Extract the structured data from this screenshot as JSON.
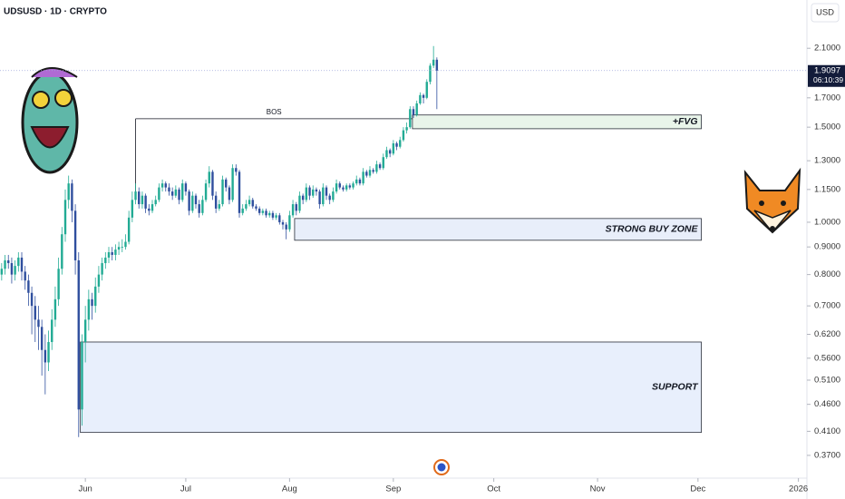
{
  "chart_data": {
    "type": "candlestick",
    "title": "UDSUSD · 1D · CRYPTO",
    "currency": "USD",
    "log_y": true,
    "up_color": "#22ab94",
    "down_color": "#2f4f9e",
    "ylim": [
      0.345,
      2.58
    ],
    "yticks": [
      {
        "value": 2.1,
        "label": "2.1000"
      },
      {
        "value": 1.7,
        "label": "1.7000"
      },
      {
        "value": 1.5,
        "label": "1.5000"
      },
      {
        "value": 1.3,
        "label": "1.3000"
      },
      {
        "value": 1.15,
        "label": "1.1500"
      },
      {
        "value": 1,
        "label": "1.0000"
      },
      {
        "value": 0.9,
        "label": "0.9000"
      },
      {
        "value": 0.8,
        "label": "0.8000"
      },
      {
        "value": 0.7,
        "label": "0.7000"
      },
      {
        "value": 0.62,
        "label": "0.6200"
      },
      {
        "value": 0.56,
        "label": "0.5600"
      },
      {
        "value": 0.51,
        "label": "0.5100"
      },
      {
        "value": 0.46,
        "label": "0.4600"
      },
      {
        "value": 0.41,
        "label": "0.4100"
      },
      {
        "value": 0.37,
        "label": "0.3700"
      }
    ],
    "xlim": [
      -0.5,
      240
    ],
    "xticks": [
      {
        "value": 25,
        "label": "Jun"
      },
      {
        "value": 55,
        "label": "Jul"
      },
      {
        "value": 86,
        "label": "Aug"
      },
      {
        "value": 117,
        "label": "Sep"
      },
      {
        "value": 147,
        "label": "Oct"
      },
      {
        "value": 178,
        "label": "Nov"
      },
      {
        "value": 208,
        "label": "Dec"
      },
      {
        "value": 238,
        "label": "2026"
      }
    ],
    "last_price": {
      "value": 1.9097,
      "label": "1.9097",
      "countdown": "06:10:39"
    },
    "bos": {
      "label": "BOS",
      "price": 1.555,
      "x0": 40,
      "x1": 122.7,
      "drop_to": 1.13
    },
    "zones": [
      {
        "label": "+FVG",
        "x0": 122.7,
        "x1": 209,
        "y0": 1.49,
        "y1": 1.58,
        "fill": "#e9f5ea"
      },
      {
        "label": "STRONG BUY ZONE",
        "x0": 87.5,
        "x1": 209,
        "y0": 0.926,
        "y1": 1.016,
        "fill": "#e8eefa"
      },
      {
        "label": "SUPPORT",
        "x0": 23.5,
        "x1": 209,
        "y0": 0.408,
        "y1": 0.6,
        "fill": "#e8effc"
      }
    ],
    "candles": [
      [
        0.8,
        0.84,
        0.78,
        0.82
      ],
      [
        0.82,
        0.87,
        0.8,
        0.85
      ],
      [
        0.85,
        0.87,
        0.82,
        0.84
      ],
      [
        0.84,
        0.86,
        0.77,
        0.8
      ],
      [
        0.8,
        0.85,
        0.78,
        0.83
      ],
      [
        0.83,
        0.88,
        0.81,
        0.86
      ],
      [
        0.86,
        0.88,
        0.78,
        0.81
      ],
      [
        0.81,
        0.83,
        0.75,
        0.78
      ],
      [
        0.78,
        0.8,
        0.7,
        0.74
      ],
      [
        0.74,
        0.76,
        0.62,
        0.7
      ],
      [
        0.7,
        0.73,
        0.6,
        0.66
      ],
      [
        0.66,
        0.7,
        0.58,
        0.64
      ],
      [
        0.64,
        0.66,
        0.52,
        0.58
      ],
      [
        0.58,
        0.62,
        0.48,
        0.55
      ],
      [
        0.55,
        0.63,
        0.53,
        0.6
      ],
      [
        0.6,
        0.69,
        0.58,
        0.66
      ],
      [
        0.66,
        0.76,
        0.64,
        0.72
      ],
      [
        0.72,
        0.86,
        0.7,
        0.82
      ],
      [
        0.82,
        0.98,
        0.8,
        0.95
      ],
      [
        0.95,
        1.15,
        0.92,
        1.1
      ],
      [
        1.1,
        1.22,
        1.06,
        1.18
      ],
      [
        1.18,
        1.2,
        1.0,
        1.05
      ],
      [
        1.05,
        1.08,
        0.8,
        0.85
      ],
      [
        0.85,
        0.88,
        0.4,
        0.45
      ],
      [
        0.45,
        0.62,
        0.42,
        0.6
      ],
      [
        0.6,
        0.7,
        0.55,
        0.66
      ],
      [
        0.66,
        0.75,
        0.63,
        0.72
      ],
      [
        0.72,
        0.74,
        0.66,
        0.7
      ],
      [
        0.7,
        0.79,
        0.68,
        0.76
      ],
      [
        0.76,
        0.83,
        0.74,
        0.8
      ],
      [
        0.8,
        0.86,
        0.78,
        0.84
      ],
      [
        0.84,
        0.88,
        0.82,
        0.86
      ],
      [
        0.86,
        0.9,
        0.84,
        0.88
      ],
      [
        0.88,
        0.9,
        0.85,
        0.87
      ],
      [
        0.87,
        0.91,
        0.85,
        0.89
      ],
      [
        0.89,
        0.92,
        0.87,
        0.9
      ],
      [
        0.9,
        0.93,
        0.88,
        0.9
      ],
      [
        0.9,
        0.95,
        0.89,
        0.92
      ],
      [
        0.92,
        1.05,
        0.91,
        1.02
      ],
      [
        1.02,
        1.14,
        1.0,
        1.1
      ],
      [
        1.1,
        1.18,
        1.08,
        1.14
      ],
      [
        1.14,
        1.16,
        1.06,
        1.08
      ],
      [
        1.08,
        1.14,
        1.06,
        1.12
      ],
      [
        1.12,
        1.13,
        1.04,
        1.06
      ],
      [
        1.06,
        1.08,
        1.03,
        1.05
      ],
      [
        1.05,
        1.1,
        1.04,
        1.08
      ],
      [
        1.08,
        1.12,
        1.07,
        1.1
      ],
      [
        1.1,
        1.18,
        1.09,
        1.16
      ],
      [
        1.16,
        1.2,
        1.14,
        1.18
      ],
      [
        1.18,
        1.19,
        1.14,
        1.16
      ],
      [
        1.16,
        1.18,
        1.12,
        1.14
      ],
      [
        1.14,
        1.16,
        1.1,
        1.12
      ],
      [
        1.12,
        1.17,
        1.11,
        1.15
      ],
      [
        1.15,
        1.16,
        1.08,
        1.1
      ],
      [
        1.1,
        1.2,
        1.09,
        1.18
      ],
      [
        1.18,
        1.19,
        1.12,
        1.14
      ],
      [
        1.14,
        1.15,
        1.03,
        1.05
      ],
      [
        1.05,
        1.14,
        1.04,
        1.12
      ],
      [
        1.12,
        1.13,
        1.06,
        1.08
      ],
      [
        1.08,
        1.1,
        1.02,
        1.04
      ],
      [
        1.04,
        1.12,
        1.03,
        1.1
      ],
      [
        1.1,
        1.2,
        1.09,
        1.18
      ],
      [
        1.18,
        1.27,
        1.16,
        1.24
      ],
      [
        1.24,
        1.25,
        1.1,
        1.12
      ],
      [
        1.12,
        1.14,
        1.04,
        1.06
      ],
      [
        1.06,
        1.1,
        1.05,
        1.08
      ],
      [
        1.08,
        1.22,
        1.07,
        1.2
      ],
      [
        1.2,
        1.21,
        1.14,
        1.16
      ],
      [
        1.16,
        1.17,
        1.08,
        1.1
      ],
      [
        1.1,
        1.28,
        1.09,
        1.26
      ],
      [
        1.26,
        1.28,
        1.22,
        1.24
      ],
      [
        1.24,
        1.25,
        1.02,
        1.04
      ],
      [
        1.04,
        1.08,
        1.03,
        1.06
      ],
      [
        1.06,
        1.1,
        1.05,
        1.08
      ],
      [
        1.08,
        1.12,
        1.07,
        1.1
      ],
      [
        1.1,
        1.11,
        1.06,
        1.07
      ],
      [
        1.07,
        1.08,
        1.05,
        1.06
      ],
      [
        1.06,
        1.07,
        1.03,
        1.04
      ],
      [
        1.04,
        1.06,
        1.03,
        1.05
      ],
      [
        1.05,
        1.06,
        1.02,
        1.03
      ],
      [
        1.03,
        1.05,
        1.02,
        1.04
      ],
      [
        1.04,
        1.05,
        1.01,
        1.02
      ],
      [
        1.02,
        1.04,
        1.01,
        1.03
      ],
      [
        1.03,
        1.04,
        0.99,
        1.0
      ],
      [
        1.0,
        1.01,
        0.97,
        0.99
      ],
      [
        0.99,
        1.0,
        0.93,
        0.97
      ],
      [
        0.97,
        1.05,
        0.96,
        1.03
      ],
      [
        1.03,
        1.1,
        1.02,
        1.08
      ],
      [
        1.08,
        1.09,
        1.03,
        1.05
      ],
      [
        1.05,
        1.14,
        1.04,
        1.12
      ],
      [
        1.12,
        1.13,
        1.08,
        1.1
      ],
      [
        1.1,
        1.18,
        1.09,
        1.16
      ],
      [
        1.16,
        1.17,
        1.1,
        1.12
      ],
      [
        1.12,
        1.17,
        1.11,
        1.15
      ],
      [
        1.15,
        1.16,
        1.12,
        1.14
      ],
      [
        1.14,
        1.15,
        1.06,
        1.08
      ],
      [
        1.08,
        1.18,
        1.07,
        1.16
      ],
      [
        1.16,
        1.17,
        1.1,
        1.12
      ],
      [
        1.12,
        1.13,
        1.08,
        1.1
      ],
      [
        1.1,
        1.16,
        1.09,
        1.14
      ],
      [
        1.14,
        1.2,
        1.13,
        1.18
      ],
      [
        1.18,
        1.19,
        1.15,
        1.16
      ],
      [
        1.16,
        1.17,
        1.14,
        1.15
      ],
      [
        1.15,
        1.18,
        1.14,
        1.17
      ],
      [
        1.17,
        1.18,
        1.15,
        1.16
      ],
      [
        1.16,
        1.19,
        1.15,
        1.18
      ],
      [
        1.18,
        1.22,
        1.17,
        1.2
      ],
      [
        1.2,
        1.21,
        1.17,
        1.18
      ],
      [
        1.18,
        1.26,
        1.17,
        1.24
      ],
      [
        1.24,
        1.25,
        1.21,
        1.22
      ],
      [
        1.22,
        1.27,
        1.21,
        1.25
      ],
      [
        1.25,
        1.26,
        1.23,
        1.24
      ],
      [
        1.24,
        1.3,
        1.23,
        1.28
      ],
      [
        1.28,
        1.29,
        1.25,
        1.26
      ],
      [
        1.26,
        1.34,
        1.25,
        1.32
      ],
      [
        1.32,
        1.38,
        1.31,
        1.36
      ],
      [
        1.36,
        1.37,
        1.32,
        1.34
      ],
      [
        1.34,
        1.42,
        1.33,
        1.4
      ],
      [
        1.4,
        1.41,
        1.36,
        1.38
      ],
      [
        1.38,
        1.44,
        1.37,
        1.42
      ],
      [
        1.42,
        1.5,
        1.41,
        1.48
      ],
      [
        1.48,
        1.53,
        1.46,
        1.5
      ],
      [
        1.5,
        1.64,
        1.49,
        1.62
      ],
      [
        1.62,
        1.64,
        1.56,
        1.58
      ],
      [
        1.58,
        1.68,
        1.57,
        1.66
      ],
      [
        1.66,
        1.74,
        1.65,
        1.72
      ],
      [
        1.72,
        1.73,
        1.66,
        1.7
      ],
      [
        1.7,
        1.84,
        1.69,
        1.82
      ],
      [
        1.82,
        1.97,
        1.8,
        1.95
      ],
      [
        1.95,
        2.12,
        1.93,
        2.0
      ],
      [
        2.0,
        2.02,
        1.62,
        1.9097
      ]
    ]
  }
}
